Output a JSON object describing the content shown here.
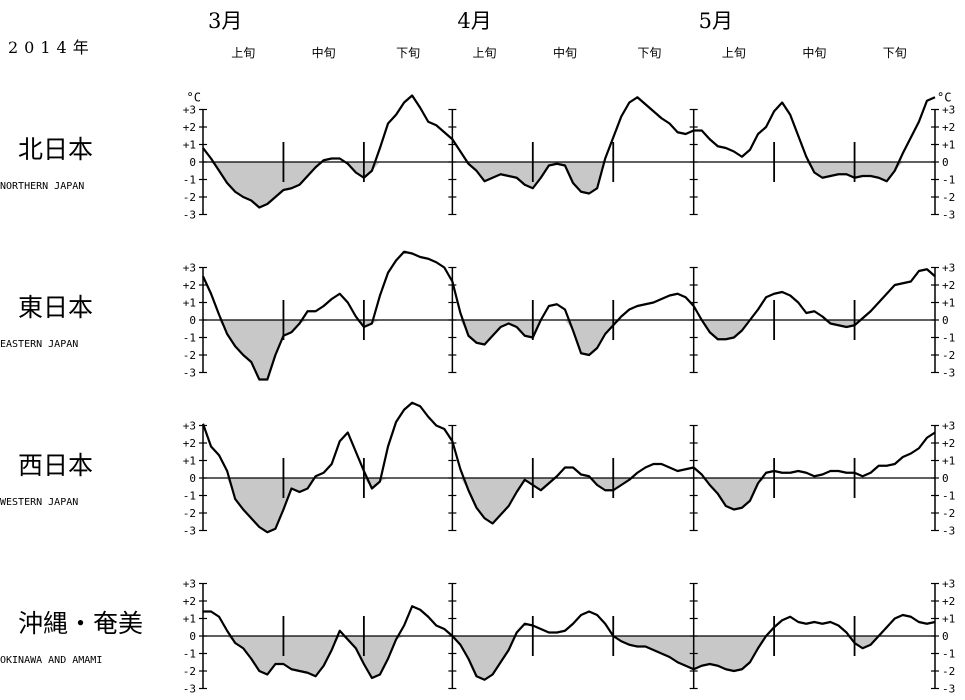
{
  "year_label": "2014年",
  "unit_label": "°C",
  "months": [
    "3月",
    "4月",
    "5月"
  ],
  "dekads": [
    "上旬",
    "中旬",
    "下旬",
    "上旬",
    "中旬",
    "下旬",
    "上旬",
    "中旬",
    "下旬"
  ],
  "chart_data": {
    "type": "line",
    "x": [
      1,
      2,
      3,
      4,
      5,
      6,
      7,
      8,
      9,
      10,
      11,
      12,
      13,
      14,
      15,
      16,
      17,
      18,
      19,
      20,
      21,
      22,
      23,
      24,
      25,
      26,
      27,
      28,
      29,
      30,
      31,
      32,
      33,
      34,
      35,
      36,
      37,
      38,
      39,
      40,
      41,
      42,
      43,
      44,
      45,
      46,
      47,
      48,
      49,
      50,
      51,
      52,
      53,
      54,
      55,
      56,
      57,
      58,
      59,
      60,
      61,
      62,
      63,
      64,
      65,
      66,
      67,
      68,
      69,
      70,
      71,
      72,
      73,
      74,
      75,
      76,
      77,
      78,
      79,
      80,
      81,
      82,
      83,
      84,
      85,
      86,
      87,
      88,
      89,
      90,
      91,
      92
    ],
    "y_ticks": [
      -3,
      -2,
      -1,
      0,
      1,
      2,
      3
    ],
    "y_tick_labels": [
      "-3",
      "-2",
      "-1",
      "0",
      "+1",
      "+2",
      "+3"
    ],
    "ylim": [
      -3,
      4
    ],
    "series": [
      {
        "name": "北日本",
        "name_en": "NORTHERN JAPAN",
        "values": [
          0.8,
          0.2,
          -0.5,
          -1.2,
          -1.7,
          -2.0,
          -2.2,
          -2.6,
          -2.4,
          -2.0,
          -1.6,
          -1.5,
          -1.3,
          -0.8,
          -0.3,
          0.1,
          0.2,
          0.2,
          -0.1,
          -0.6,
          -0.9,
          -0.5,
          0.8,
          2.2,
          2.7,
          3.4,
          3.8,
          3.1,
          2.3,
          2.1,
          1.7,
          1.3,
          0.6,
          -0.1,
          -0.5,
          -1.1,
          -0.9,
          -0.7,
          -0.8,
          -0.9,
          -1.3,
          -1.5,
          -0.9,
          -0.2,
          -0.1,
          -0.2,
          -1.2,
          -1.7,
          -1.8,
          -1.5,
          0.2,
          1.4,
          2.6,
          3.4,
          3.7,
          3.3,
          2.9,
          2.5,
          2.2,
          1.7,
          1.6,
          1.8,
          1.8,
          1.3,
          0.9,
          0.8,
          0.6,
          0.3,
          0.7,
          1.6,
          2.0,
          2.9,
          3.4,
          2.7,
          1.5,
          0.3,
          -0.6,
          -0.9,
          -0.8,
          -0.7,
          -0.7,
          -0.9,
          -0.8,
          -0.8,
          -0.9,
          -1.1,
          -0.5,
          0.5,
          1.4,
          2.3,
          3.5,
          3.7
        ]
      },
      {
        "name": "東日本",
        "name_en": "EASTERN JAPAN",
        "values": [
          2.5,
          1.5,
          0.3,
          -0.8,
          -1.5,
          -2.0,
          -2.4,
          -3.4,
          -3.4,
          -2.0,
          -0.9,
          -0.7,
          -0.2,
          0.5,
          0.5,
          0.8,
          1.2,
          1.5,
          1.0,
          0.2,
          -0.4,
          -0.2,
          1.4,
          2.7,
          3.4,
          3.9,
          3.8,
          3.6,
          3.5,
          3.3,
          3.0,
          2.2,
          0.4,
          -0.9,
          -1.3,
          -1.4,
          -0.9,
          -0.4,
          -0.2,
          -0.4,
          -0.9,
          -1.0,
          0.0,
          0.8,
          0.9,
          0.6,
          -0.6,
          -1.9,
          -2.0,
          -1.6,
          -0.8,
          -0.3,
          0.2,
          0.6,
          0.8,
          0.9,
          1.0,
          1.2,
          1.4,
          1.5,
          1.3,
          0.8,
          0.0,
          -0.7,
          -1.1,
          -1.1,
          -1.0,
          -0.6,
          0.0,
          0.6,
          1.3,
          1.5,
          1.6,
          1.4,
          1.0,
          0.4,
          0.5,
          0.2,
          -0.2,
          -0.3,
          -0.4,
          -0.3,
          0.1,
          0.5,
          1.0,
          1.5,
          2.0,
          2.1,
          2.2,
          2.8,
          2.9,
          2.5
        ]
      },
      {
        "name": "西日本",
        "name_en": "WESTERN JAPAN",
        "values": [
          3.1,
          1.8,
          1.3,
          0.4,
          -1.2,
          -1.8,
          -2.3,
          -2.8,
          -3.1,
          -2.9,
          -1.8,
          -0.6,
          -0.8,
          -0.6,
          0.1,
          0.3,
          0.8,
          2.1,
          2.6,
          1.5,
          0.4,
          -0.6,
          -0.2,
          1.8,
          3.2,
          3.9,
          4.3,
          4.1,
          3.5,
          3.0,
          2.8,
          2.1,
          0.5,
          -0.7,
          -1.7,
          -2.3,
          -2.6,
          -2.1,
          -1.6,
          -0.8,
          -0.1,
          -0.4,
          -0.7,
          -0.3,
          0.1,
          0.6,
          0.6,
          0.2,
          0.1,
          -0.4,
          -0.7,
          -0.7,
          -0.4,
          -0.1,
          0.3,
          0.6,
          0.8,
          0.8,
          0.6,
          0.4,
          0.5,
          0.6,
          0.2,
          -0.4,
          -0.9,
          -1.6,
          -1.8,
          -1.7,
          -1.3,
          -0.3,
          0.3,
          0.4,
          0.3,
          0.3,
          0.4,
          0.3,
          0.1,
          0.2,
          0.4,
          0.4,
          0.3,
          0.3,
          0.1,
          0.3,
          0.7,
          0.7,
          0.8,
          1.2,
          1.4,
          1.7,
          2.3,
          2.6
        ]
      },
      {
        "name": "沖縄・奄美",
        "name_en": "OKINAWA AND AMAMI",
        "values": [
          1.4,
          1.4,
          1.1,
          0.3,
          -0.4,
          -0.7,
          -1.3,
          -2.0,
          -2.2,
          -1.6,
          -1.6,
          -1.9,
          -2.0,
          -2.1,
          -2.3,
          -1.7,
          -0.8,
          0.3,
          -0.2,
          -0.7,
          -1.6,
          -2.4,
          -2.2,
          -1.3,
          -0.2,
          0.6,
          1.7,
          1.5,
          1.1,
          0.6,
          0.4,
          0.0,
          -0.5,
          -1.3,
          -2.3,
          -2.5,
          -2.2,
          -1.5,
          -0.8,
          0.2,
          0.7,
          0.6,
          0.4,
          0.2,
          0.2,
          0.3,
          0.7,
          1.2,
          1.4,
          1.2,
          0.7,
          0.0,
          -0.3,
          -0.5,
          -0.6,
          -0.6,
          -0.8,
          -1.0,
          -1.2,
          -1.5,
          -1.7,
          -1.9,
          -1.7,
          -1.6,
          -1.7,
          -1.9,
          -2.0,
          -1.9,
          -1.5,
          -0.7,
          0.0,
          0.5,
          0.9,
          1.1,
          0.8,
          0.7,
          0.8,
          0.7,
          0.8,
          0.6,
          0.2,
          -0.4,
          -0.7,
          -0.5,
          0.0,
          0.5,
          1.0,
          1.2,
          1.1,
          0.8,
          0.7,
          0.8
        ]
      }
    ]
  }
}
